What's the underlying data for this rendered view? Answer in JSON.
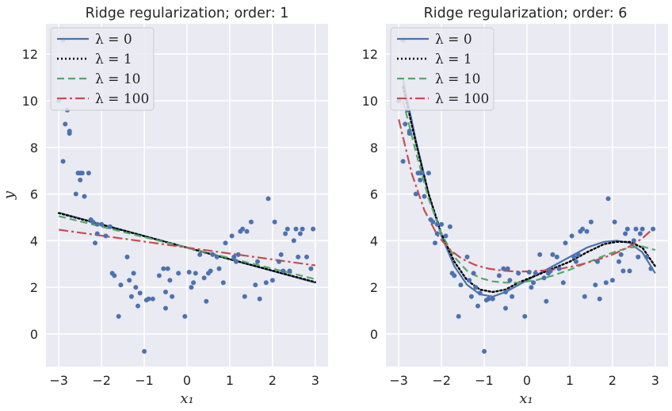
{
  "chart_data": [
    {
      "type": "scatter",
      "title": "Ridge regularization; order: 1",
      "xlabel": "x₁",
      "ylabel": "y",
      "xlim": [
        -3.3,
        3.3
      ],
      "ylim": [
        -1.4,
        13.3
      ],
      "xticks": [
        -3,
        -2,
        -1,
        0,
        1,
        2,
        3
      ],
      "yticks": [
        0,
        2,
        4,
        6,
        8,
        10,
        12
      ],
      "xtick_labels": [
        "−3",
        "−2",
        "−1",
        "0",
        "1",
        "2",
        "3"
      ],
      "ytick_labels": [
        "0",
        "2",
        "4",
        "6",
        "8",
        "10",
        "12"
      ],
      "grid": true,
      "legend_position": "top-left",
      "series": [
        {
          "name": "λ = 0",
          "kind": "line",
          "style": "solid",
          "color": "#4c72b0",
          "x": [
            -3,
            3
          ],
          "y": [
            5.2,
            2.2
          ]
        },
        {
          "name": "λ = 1",
          "kind": "line",
          "style": "dotted",
          "color": "#000000",
          "x": [
            -3,
            3
          ],
          "y": [
            5.18,
            2.22
          ]
        },
        {
          "name": "λ = 10",
          "kind": "line",
          "style": "dashed",
          "color": "#55a868",
          "x": [
            -3,
            3
          ],
          "y": [
            5.05,
            2.35
          ]
        },
        {
          "name": "λ = 100",
          "kind": "line",
          "style": "dashdot",
          "color": "#c44e52",
          "x": [
            -3,
            3
          ],
          "y": [
            4.47,
            2.94
          ]
        }
      ]
    },
    {
      "type": "scatter",
      "title": "Ridge regularization; order: 6",
      "xlabel": "x₁",
      "ylabel": "",
      "xlim": [
        -3.3,
        3.3
      ],
      "ylim": [
        -1.4,
        13.3
      ],
      "xticks": [
        -3,
        -2,
        -1,
        0,
        1,
        2,
        3
      ],
      "yticks": [
        0,
        2,
        4,
        6,
        8,
        10,
        12
      ],
      "xtick_labels": [
        "−3",
        "−2",
        "−1",
        "0",
        "1",
        "2",
        "3"
      ],
      "ytick_labels": [
        "0",
        "2",
        "4",
        "6",
        "8",
        "10",
        "12"
      ],
      "grid": true,
      "legend_position": "top-left",
      "series": [
        {
          "name": "λ = 0",
          "kind": "line",
          "style": "solid",
          "color": "#4c72b0",
          "x": [
            -2.9,
            -2.6,
            -2.3,
            -2.0,
            -1.7,
            -1.4,
            -1.1,
            -0.8,
            -0.5,
            -0.2,
            0.2,
            0.6,
            1.0,
            1.4,
            1.8,
            2.1,
            2.4,
            2.7,
            3.0
          ],
          "y": [
            10.9,
            8.3,
            6.0,
            4.2,
            2.9,
            2.1,
            1.7,
            1.6,
            1.8,
            2.1,
            2.5,
            2.9,
            3.3,
            3.7,
            3.95,
            4.0,
            3.9,
            3.5,
            2.6
          ]
        },
        {
          "name": "λ = 1",
          "kind": "line",
          "style": "dotted",
          "color": "#000000",
          "x": [
            -2.9,
            -2.6,
            -2.3,
            -2.0,
            -1.7,
            -1.4,
            -1.1,
            -0.8,
            -0.5,
            -0.2,
            0.2,
            0.6,
            1.0,
            1.4,
            1.8,
            2.1,
            2.4,
            2.7,
            3.0
          ],
          "y": [
            10.6,
            8.2,
            6.0,
            4.3,
            3.1,
            2.3,
            1.9,
            1.8,
            1.9,
            2.2,
            2.5,
            2.8,
            3.1,
            3.5,
            3.85,
            3.95,
            3.95,
            3.7,
            2.9
          ]
        },
        {
          "name": "λ = 10",
          "kind": "line",
          "style": "dashed",
          "color": "#55a868",
          "x": [
            -2.9,
            -2.6,
            -2.3,
            -2.0,
            -1.7,
            -1.4,
            -1.1,
            -0.8,
            -0.5,
            -0.2,
            0.2,
            0.6,
            1.0,
            1.4,
            1.8,
            2.1,
            2.4,
            2.7,
            3.0
          ],
          "y": [
            10.0,
            7.8,
            5.8,
            4.3,
            3.3,
            2.7,
            2.4,
            2.25,
            2.2,
            2.2,
            2.3,
            2.5,
            2.75,
            3.05,
            3.35,
            3.55,
            3.7,
            3.75,
            3.6
          ]
        },
        {
          "name": "λ = 100",
          "kind": "line",
          "style": "dashdot",
          "color": "#c44e52",
          "x": [
            -3.0,
            -2.7,
            -2.4,
            -2.1,
            -1.8,
            -1.5,
            -1.2,
            -0.9,
            -0.6,
            -0.3,
            0.0,
            0.4,
            0.8,
            1.2,
            1.6,
            2.0,
            2.4,
            2.7,
            3.0
          ],
          "y": [
            9.2,
            6.9,
            5.3,
            4.25,
            3.6,
            3.2,
            2.95,
            2.8,
            2.72,
            2.68,
            2.68,
            2.72,
            2.8,
            2.95,
            3.15,
            3.4,
            3.75,
            4.1,
            4.6
          ]
        }
      ]
    }
  ],
  "scatter_points": {
    "x": [
      -3.0,
      -2.9,
      -2.9,
      -2.85,
      -2.8,
      -2.75,
      -2.75,
      -2.6,
      -2.55,
      -2.5,
      -2.5,
      -2.45,
      -2.4,
      -2.3,
      -2.25,
      -2.2,
      -2.15,
      -2.1,
      -2.1,
      -2.0,
      -1.9,
      -1.8,
      -1.75,
      -1.7,
      -1.6,
      -1.55,
      -1.4,
      -1.35,
      -1.3,
      -1.25,
      -1.2,
      -1.15,
      -1.1,
      -1.0,
      -0.95,
      -0.9,
      -0.8,
      -0.65,
      -0.55,
      -0.5,
      -0.5,
      -0.45,
      -0.4,
      -0.35,
      -0.2,
      -0.05,
      0.05,
      0.1,
      0.15,
      0.2,
      0.3,
      0.4,
      0.45,
      0.5,
      0.55,
      0.6,
      0.7,
      0.75,
      0.85,
      0.9,
      1.05,
      1.1,
      1.15,
      1.2,
      1.25,
      1.3,
      1.35,
      1.4,
      1.5,
      1.6,
      1.65,
      1.7,
      1.85,
      1.9,
      2.0,
      2.05,
      2.15,
      2.2,
      2.25,
      2.3,
      2.35,
      2.4,
      2.5,
      2.55,
      2.6,
      2.65,
      2.7,
      2.8,
      2.9,
      2.95
    ],
    "y": [
      10.0,
      12.6,
      7.4,
      9.0,
      9.6,
      8.7,
      8.6,
      6.0,
      6.9,
      6.9,
      6.6,
      6.9,
      5.9,
      6.9,
      4.9,
      4.8,
      3.9,
      4.7,
      4.3,
      4.7,
      4.2,
      4.6,
      2.6,
      2.5,
      0.75,
      2.1,
      3.3,
      2.3,
      1.6,
      2.6,
      2.0,
      1.2,
      1.75,
      -0.75,
      1.45,
      1.5,
      1.5,
      2.5,
      2.8,
      1.8,
      1.1,
      2.8,
      2.3,
      1.6,
      2.6,
      0.75,
      2.65,
      2.0,
      2.2,
      2.6,
      3.4,
      2.4,
      1.4,
      2.6,
      2.7,
      3.4,
      3.3,
      2.8,
      2.2,
      3.9,
      4.2,
      3.3,
      3.1,
      3.4,
      4.4,
      4.5,
      1.6,
      4.4,
      4.8,
      2.1,
      3.1,
      1.5,
      2.2,
      5.8,
      2.3,
      4.8,
      3.1,
      3.4,
      2.7,
      4.3,
      4.5,
      2.7,
      4.0,
      4.5,
      3.3,
      4.3,
      4.5,
      3.3,
      2.8,
      4.5
    ]
  }
}
